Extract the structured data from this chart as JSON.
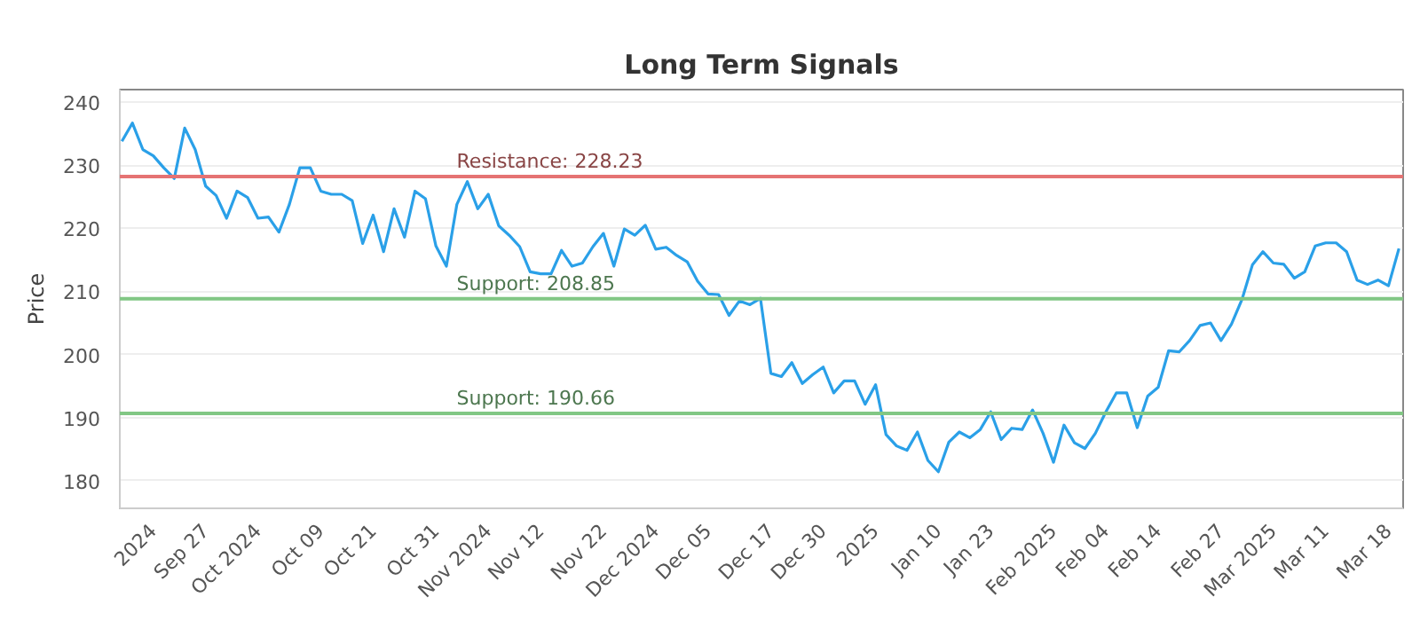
{
  "chart_data": {
    "type": "line",
    "title": "Long Term Signals",
    "ylabel": "Price",
    "categories": [
      null,
      null,
      null,
      "2024",
      null,
      null,
      null,
      null,
      "Sep 27",
      null,
      null,
      null,
      null,
      "Oct 2024",
      null,
      null,
      null,
      null,
      null,
      "Oct 09",
      null,
      null,
      null,
      null,
      "Oct 21",
      null,
      null,
      null,
      null,
      null,
      "Oct 31",
      null,
      null,
      null,
      null,
      "Nov 2024",
      null,
      null,
      null,
      null,
      "Nov 12",
      null,
      null,
      null,
      null,
      null,
      "Nov 22",
      null,
      null,
      null,
      null,
      "Dec 2024",
      null,
      null,
      null,
      null,
      "Dec 05",
      null,
      null,
      null,
      null,
      null,
      "Dec 17",
      null,
      null,
      null,
      null,
      "Dec 30",
      null,
      null,
      null,
      null,
      "2025",
      null,
      null,
      null,
      null,
      null,
      "Jan 10",
      null,
      null,
      null,
      null,
      "Jan 23",
      null,
      null,
      null,
      null,
      null,
      "Feb 2025",
      null,
      null,
      null,
      null,
      "Feb 04",
      null,
      null,
      null,
      null,
      "Feb 14",
      null,
      null,
      null,
      null,
      null,
      "Feb 27",
      null,
      null,
      null,
      null,
      "Mar 2025",
      null,
      null,
      null,
      null,
      "Mar 11",
      null,
      null,
      null,
      null,
      null,
      "Mar 18",
      null
    ],
    "series": [
      {
        "color": "#2aa0e8",
        "values": [
          233.8,
          236.7,
          232.5,
          231.5,
          229.6,
          227.9,
          235.9,
          232.5,
          226.7,
          225.2,
          221.6,
          225.9,
          224.9,
          221.6,
          221.8,
          219.4,
          223.8,
          229.6,
          229.6,
          225.9,
          225.4,
          225.4,
          224.4,
          217.6,
          222.1,
          216.3,
          223.1,
          218.6,
          225.9,
          224.7,
          217.2,
          214.0,
          223.8,
          227.4,
          223.1,
          225.4,
          220.4,
          218.9,
          217.1,
          213.1,
          212.8,
          212.8,
          216.5,
          214.0,
          214.5,
          217.1,
          219.2,
          214.0,
          219.9,
          218.9,
          220.5,
          216.7,
          217.0,
          215.7,
          214.7,
          211.6,
          209.6,
          209.5,
          206.2,
          208.5,
          207.9,
          208.9,
          197.0,
          196.5,
          198.7,
          195.4,
          196.8,
          198.0,
          193.9,
          195.8,
          195.8,
          192.1,
          195.2,
          187.3,
          185.5,
          184.8,
          187.7,
          183.2,
          181.4,
          186.1,
          187.7,
          186.8,
          188.1,
          190.9,
          186.5,
          188.3,
          188.1,
          191.2,
          187.5,
          182.9,
          188.8,
          186.0,
          185.1,
          187.5,
          190.9,
          193.9,
          193.9,
          188.4,
          193.4,
          194.8,
          200.6,
          200.4,
          202.2,
          204.6,
          205.0,
          202.2,
          204.8,
          208.7,
          214.2,
          216.3,
          214.5,
          214.3,
          212.1,
          213.1,
          217.2,
          217.7,
          217.7,
          216.3,
          211.8,
          211.1,
          211.8,
          210.9,
          216.8
        ]
      }
    ],
    "ylim": [
      175.6,
      242
    ],
    "yticks": [
      180,
      190,
      200,
      210,
      220,
      230,
      240
    ],
    "grid": "y",
    "ref_lines": [
      {
        "axis": "y",
        "value": 228.23,
        "label": "Resistance: 228.23",
        "color": "#e57373"
      },
      {
        "axis": "y",
        "value": 208.85,
        "label": "Support: 208.85",
        "color": "#81c784"
      },
      {
        "axis": "y",
        "value": 190.66,
        "label": "Support: 190.66",
        "color": "#81c784"
      }
    ]
  }
}
